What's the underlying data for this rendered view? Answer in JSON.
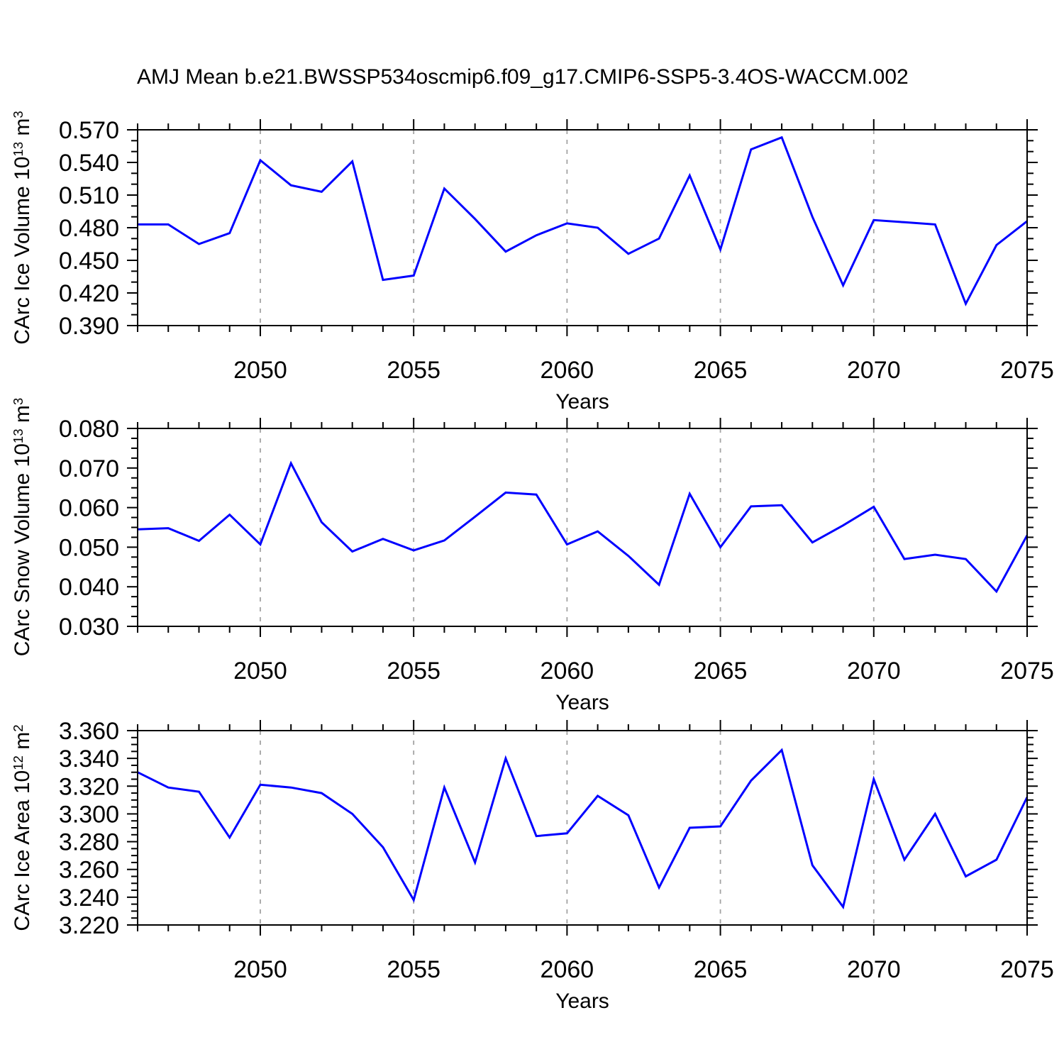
{
  "title": "AMJ Mean b.e21.BWSSP534oscmip6.f09_g17.CMIP6-SSP5-3.4OS-WACCM.002",
  "colors": {
    "line": "#0000ff",
    "axis": "#000000",
    "gridline": "#a3a3a3",
    "background": "#ffffff"
  },
  "x_axis": {
    "label": "Years",
    "years": [
      2046,
      2047,
      2048,
      2049,
      2050,
      2051,
      2052,
      2053,
      2054,
      2055,
      2056,
      2057,
      2058,
      2059,
      2060,
      2061,
      2062,
      2063,
      2064,
      2065,
      2066,
      2067,
      2068,
      2069,
      2070,
      2071,
      2072,
      2073,
      2074,
      2075
    ],
    "major_ticks": [
      2050,
      2055,
      2060,
      2065,
      2070,
      2075
    ],
    "major_tick_labels": [
      "2050",
      "2055",
      "2060",
      "2065",
      "2070",
      "2075"
    ],
    "minor_step_years": 1
  },
  "chart_data": [
    {
      "id": "ice-volume",
      "type": "line",
      "ylabel": "CArc Ice Volume 10^13 m^3",
      "ylabel_parts": {
        "base": "CArc Ice Volume 10",
        "exp": "13",
        "unit": " m",
        "unit_exp": "3"
      },
      "xlabel": "Years",
      "ylim": [
        0.39,
        0.57
      ],
      "yticks": [
        0.39,
        0.42,
        0.45,
        0.48,
        0.51,
        0.54,
        0.57
      ],
      "ytick_labels": [
        "0.390",
        "0.420",
        "0.450",
        "0.480",
        "0.510",
        "0.540",
        "0.570"
      ],
      "yminor_step": 0.01,
      "grid": "vertical-dashed",
      "series": [
        {
          "name": "AMJ mean CArc ice volume",
          "values": [
            0.483,
            0.483,
            0.465,
            0.475,
            0.542,
            0.519,
            0.513,
            0.541,
            0.432,
            0.436,
            0.516,
            0.488,
            0.458,
            0.473,
            0.484,
            0.48,
            0.456,
            0.47,
            0.528,
            0.46,
            0.552,
            0.563,
            0.49,
            0.427,
            0.487,
            0.485,
            0.483,
            0.41,
            0.464,
            0.486
          ]
        }
      ]
    },
    {
      "id": "snow-volume",
      "type": "line",
      "ylabel": "CArc Snow Volume 10^13 m^3",
      "ylabel_parts": {
        "base": "CArc Snow Volume 10",
        "exp": "13",
        "unit": " m",
        "unit_exp": "3"
      },
      "xlabel": "Years",
      "ylim": [
        0.03,
        0.08
      ],
      "yticks": [
        0.03,
        0.04,
        0.05,
        0.06,
        0.07,
        0.08
      ],
      "ytick_labels": [
        "0.030",
        "0.040",
        "0.050",
        "0.060",
        "0.070",
        "0.080"
      ],
      "yminor_step": 0.0025,
      "grid": "vertical-dashed",
      "series": [
        {
          "name": "AMJ mean CArc snow volume",
          "values": [
            0.0545,
            0.0548,
            0.0516,
            0.0582,
            0.0507,
            0.0712,
            0.0563,
            0.0489,
            0.0521,
            0.0492,
            0.0517,
            0.0577,
            0.0638,
            0.0633,
            0.0507,
            0.054,
            0.0478,
            0.0405,
            0.0635,
            0.05,
            0.0603,
            0.0606,
            0.0512,
            0.0555,
            0.0602,
            0.047,
            0.0481,
            0.047,
            0.0388,
            0.053
          ]
        }
      ]
    },
    {
      "id": "ice-area",
      "type": "line",
      "ylabel": "CArc Ice Area 10^12 m^2",
      "ylabel_parts": {
        "base": "CArc Ice Area 10",
        "exp": "12",
        "unit": " m",
        "unit_exp": "2"
      },
      "xlabel": "Years",
      "ylim": [
        3.22,
        3.36
      ],
      "yticks": [
        3.22,
        3.24,
        3.26,
        3.28,
        3.3,
        3.32,
        3.34,
        3.36
      ],
      "ytick_labels": [
        "3.220",
        "3.240",
        "3.260",
        "3.280",
        "3.300",
        "3.320",
        "3.340",
        "3.360"
      ],
      "yminor_step": 0.005,
      "grid": "vertical-dashed",
      "series": [
        {
          "name": "AMJ mean CArc ice area",
          "values": [
            3.33,
            3.319,
            3.316,
            3.283,
            3.321,
            3.319,
            3.315,
            3.3,
            3.276,
            3.238,
            3.319,
            3.265,
            3.34,
            3.284,
            3.286,
            3.313,
            3.299,
            3.247,
            3.29,
            3.291,
            3.324,
            3.346,
            3.263,
            3.233,
            3.325,
            3.267,
            3.3,
            3.255,
            3.267,
            3.312
          ]
        }
      ]
    }
  ]
}
